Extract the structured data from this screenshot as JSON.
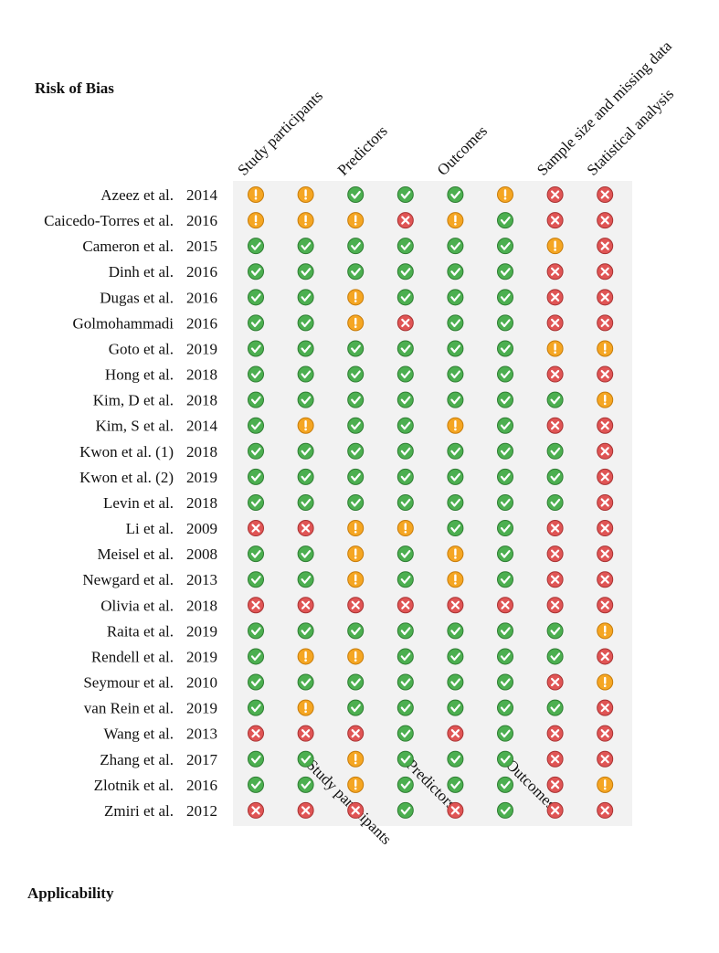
{
  "titles": {
    "risk_of_bias": "Risk of Bias",
    "applicability": "Applicability"
  },
  "columns": [
    {
      "label": "Study participants",
      "position": "top"
    },
    {
      "label": "Study participants",
      "position": "bottom"
    },
    {
      "label": "Predictors",
      "position": "top"
    },
    {
      "label": "Predictors",
      "position": "bottom"
    },
    {
      "label": "Outcomes",
      "position": "top"
    },
    {
      "label": "Outcomes",
      "position": "bottom"
    },
    {
      "label": "Sample size and missing data",
      "position": "top"
    },
    {
      "label": "Statistical analysis",
      "position": "top"
    }
  ],
  "studies": [
    {
      "name": "Azeez et al.",
      "year": 2014,
      "ratings": [
        "!",
        "!",
        "+",
        "+",
        "+",
        "!",
        "x",
        "x"
      ]
    },
    {
      "name": "Caicedo-Torres et al.",
      "year": 2016,
      "ratings": [
        "!",
        "!",
        "!",
        "x",
        "!",
        "+",
        "x",
        "x"
      ]
    },
    {
      "name": "Cameron et al.",
      "year": 2015,
      "ratings": [
        "+",
        "+",
        "+",
        "+",
        "+",
        "+",
        "!",
        "x"
      ]
    },
    {
      "name": "Dinh et al.",
      "year": 2016,
      "ratings": [
        "+",
        "+",
        "+",
        "+",
        "+",
        "+",
        "x",
        "x"
      ]
    },
    {
      "name": "Dugas et al.",
      "year": 2016,
      "ratings": [
        "+",
        "+",
        "!",
        "+",
        "+",
        "+",
        "x",
        "x"
      ]
    },
    {
      "name": "Golmohammadi",
      "year": 2016,
      "ratings": [
        "+",
        "+",
        "!",
        "x",
        "+",
        "+",
        "x",
        "x"
      ]
    },
    {
      "name": "Goto et al.",
      "year": 2019,
      "ratings": [
        "+",
        "+",
        "+",
        "+",
        "+",
        "+",
        "!",
        "!"
      ]
    },
    {
      "name": "Hong et al.",
      "year": 2018,
      "ratings": [
        "+",
        "+",
        "+",
        "+",
        "+",
        "+",
        "x",
        "x"
      ]
    },
    {
      "name": "Kim, D et al.",
      "year": 2018,
      "ratings": [
        "+",
        "+",
        "+",
        "+",
        "+",
        "+",
        "+",
        "!"
      ]
    },
    {
      "name": "Kim, S et al.",
      "year": 2014,
      "ratings": [
        "+",
        "!",
        "+",
        "+",
        "!",
        "+",
        "x",
        "x"
      ]
    },
    {
      "name": "Kwon et al. (1)",
      "year": 2018,
      "ratings": [
        "+",
        "+",
        "+",
        "+",
        "+",
        "+",
        "+",
        "x"
      ]
    },
    {
      "name": "Kwon et al. (2)",
      "year": 2019,
      "ratings": [
        "+",
        "+",
        "+",
        "+",
        "+",
        "+",
        "+",
        "x"
      ]
    },
    {
      "name": "Levin et al.",
      "year": 2018,
      "ratings": [
        "+",
        "+",
        "+",
        "+",
        "+",
        "+",
        "+",
        "x"
      ]
    },
    {
      "name": "Li et al.",
      "year": 2009,
      "ratings": [
        "x",
        "x",
        "!",
        "!",
        "+",
        "+",
        "x",
        "x"
      ]
    },
    {
      "name": "Meisel et al.",
      "year": 2008,
      "ratings": [
        "+",
        "+",
        "!",
        "+",
        "!",
        "+",
        "x",
        "x"
      ]
    },
    {
      "name": "Newgard et al.",
      "year": 2013,
      "ratings": [
        "+",
        "+",
        "!",
        "+",
        "!",
        "+",
        "x",
        "x"
      ]
    },
    {
      "name": "Olivia et al.",
      "year": 2018,
      "ratings": [
        "x",
        "x",
        "x",
        "x",
        "x",
        "x",
        "x",
        "x"
      ]
    },
    {
      "name": "Raita et al.",
      "year": 2019,
      "ratings": [
        "+",
        "+",
        "+",
        "+",
        "+",
        "+",
        "+",
        "!"
      ]
    },
    {
      "name": "Rendell et al.",
      "year": 2019,
      "ratings": [
        "+",
        "!",
        "!",
        "+",
        "+",
        "+",
        "+",
        "x"
      ]
    },
    {
      "name": "Seymour et al.",
      "year": 2010,
      "ratings": [
        "+",
        "+",
        "+",
        "+",
        "+",
        "+",
        "x",
        "!"
      ]
    },
    {
      "name": "van Rein et al.",
      "year": 2019,
      "ratings": [
        "+",
        "!",
        "+",
        "+",
        "+",
        "+",
        "+",
        "x"
      ]
    },
    {
      "name": "Wang et al.",
      "year": 2013,
      "ratings": [
        "x",
        "x",
        "x",
        "+",
        "x",
        "+",
        "x",
        "x"
      ]
    },
    {
      "name": "Zhang et al.",
      "year": 2017,
      "ratings": [
        "+",
        "+",
        "!",
        "+",
        "+",
        "+",
        "x",
        "x"
      ]
    },
    {
      "name": "Zlotnik et al.",
      "year": 2016,
      "ratings": [
        "+",
        "+",
        "!",
        "+",
        "+",
        "+",
        "x",
        "!"
      ]
    },
    {
      "name": "Zmiri et al.",
      "year": 2012,
      "ratings": [
        "x",
        "x",
        "x",
        "+",
        "x",
        "+",
        "x",
        "x"
      ]
    }
  ]
}
